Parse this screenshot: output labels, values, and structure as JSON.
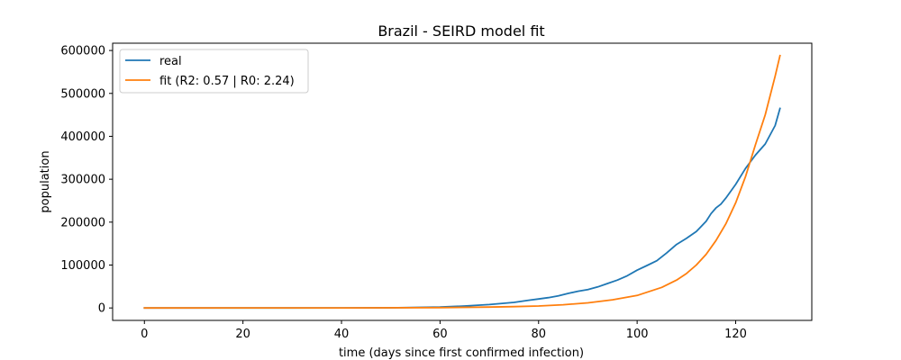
{
  "chart_data": {
    "type": "line",
    "title": "Brazil - SEIRD model fit",
    "xlabel": "time (days since first confirmed infection)",
    "ylabel": "population",
    "xlim": [
      -6.45,
      135.45
    ],
    "ylim": [
      -29000,
      617000
    ],
    "xticks": [
      0,
      20,
      40,
      60,
      80,
      100,
      120
    ],
    "yticks": [
      0,
      100000,
      200000,
      300000,
      400000,
      500000,
      600000
    ],
    "grid": false,
    "legend_position": "upper left",
    "series": [
      {
        "name": "real",
        "color": "#1f77b4",
        "x": [
          0,
          30,
          50,
          60,
          65,
          70,
          75,
          78,
          80,
          82,
          84,
          86,
          88,
          90,
          92,
          94,
          96,
          98,
          100,
          102,
          104,
          106,
          108,
          110,
          112,
          114,
          115,
          116,
          117,
          118,
          120,
          122,
          124,
          126,
          128,
          129
        ],
        "y": [
          1,
          5,
          300,
          2000,
          4500,
          8000,
          13000,
          18000,
          21000,
          24000,
          28000,
          34000,
          39000,
          43000,
          49000,
          57000,
          65000,
          75000,
          88000,
          99000,
          110000,
          128000,
          148000,
          162000,
          178000,
          202000,
          220000,
          233000,
          242000,
          256000,
          288000,
          325000,
          356000,
          382000,
          425000,
          465000
        ]
      },
      {
        "name": "fit (R2: 0.57 | R0: 2.24)",
        "color": "#ff7f0e",
        "x": [
          0,
          40,
          60,
          70,
          75,
          80,
          85,
          90,
          95,
          100,
          105,
          108,
          110,
          112,
          114,
          116,
          118,
          120,
          122,
          124,
          126,
          128,
          129
        ],
        "y": [
          1,
          60,
          700,
          2100,
          3000,
          4500,
          7500,
          12000,
          19000,
          29000,
          48000,
          65000,
          80000,
          100000,
          125000,
          157000,
          196000,
          245000,
          306000,
          380000,
          450000,
          540000,
          588000
        ]
      }
    ]
  }
}
